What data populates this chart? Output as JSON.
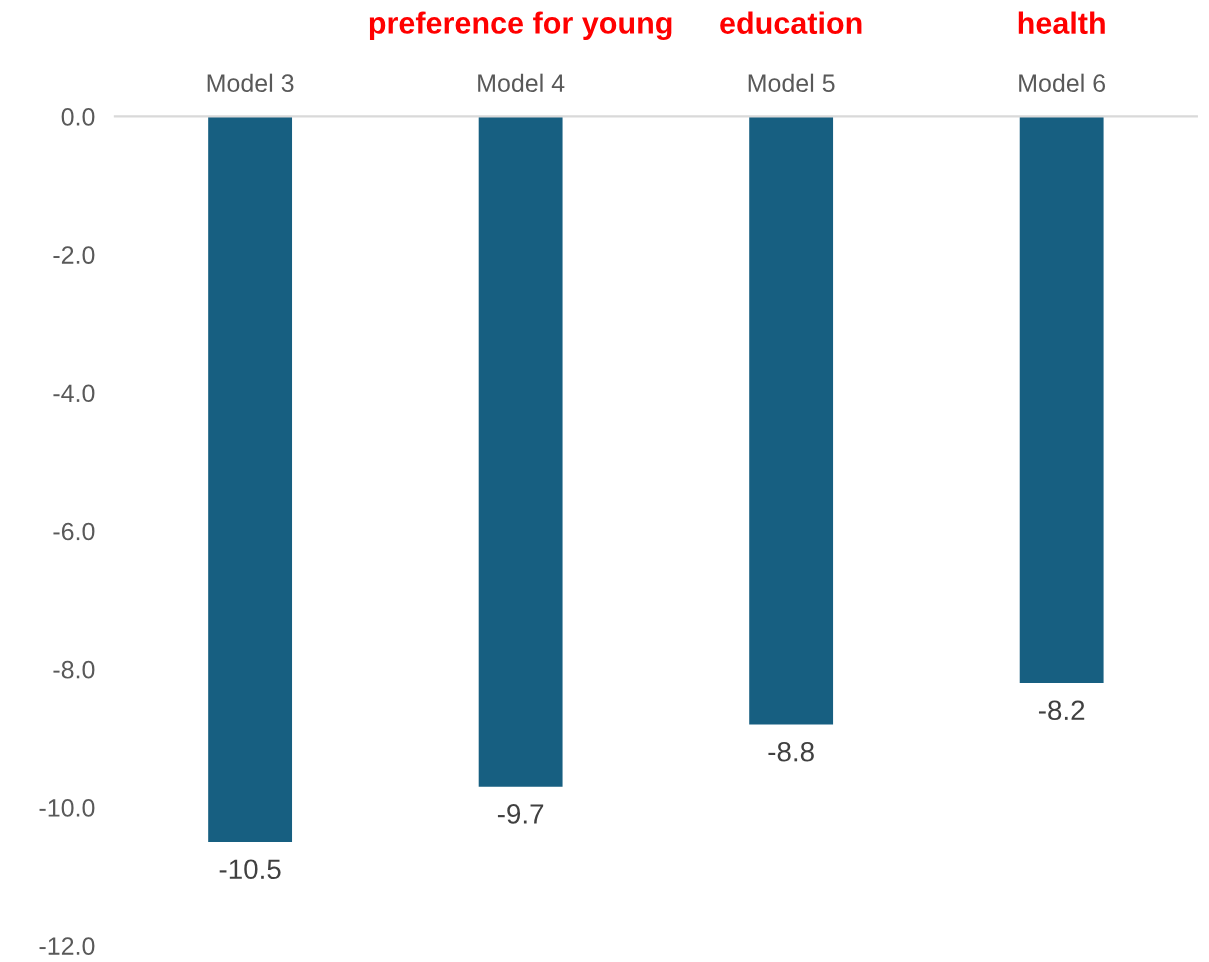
{
  "chart_data": {
    "type": "bar",
    "categories": [
      "Model 3",
      "Model 4",
      "Model 5",
      "Model 6"
    ],
    "values": [
      -10.5,
      -9.7,
      -8.8,
      -8.2
    ],
    "color": "#175f81",
    "data_labels": true,
    "ylim": [
      -12,
      0
    ],
    "yticks": [
      {
        "value": 0,
        "label": "0.0"
      },
      {
        "value": -2,
        "label": "-2.0"
      },
      {
        "value": -4,
        "label": "-4.0"
      },
      {
        "value": -6,
        "label": "-6.0"
      },
      {
        "value": -8,
        "label": "-8.0"
      },
      {
        "value": -10,
        "label": "-10.0"
      },
      {
        "value": -12,
        "label": "-12.0"
      }
    ],
    "grid": false,
    "annotations": [
      "preference for young",
      "education",
      "health"
    ]
  }
}
